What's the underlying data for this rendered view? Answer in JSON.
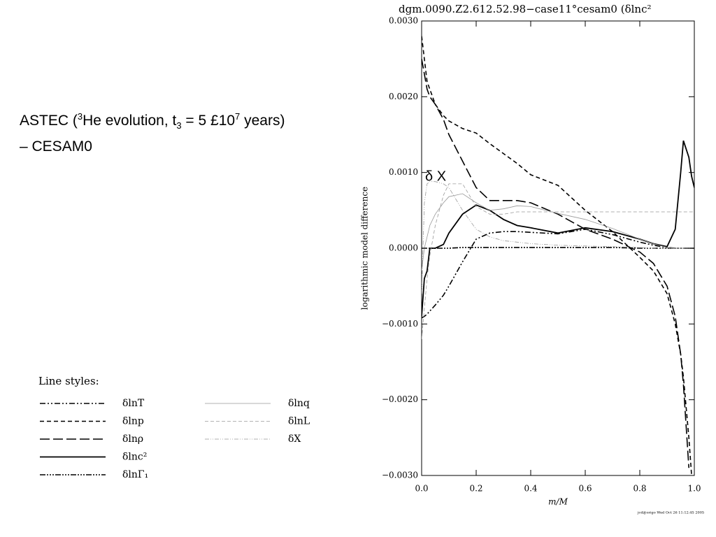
{
  "slide": {
    "heading": [
      "ASTEC (",
      "3",
      "He evolution, t",
      "3",
      " = 5 £10",
      "7",
      " years)"
    ],
    "subheading": "– CESAM0"
  },
  "chart_data": {
    "type": "line",
    "title": "dgm.0090.Z2.612.52.98−case11°cesam0   (δlnc²",
    "x_label": "m/M",
    "y_label": "logarithmic model difference",
    "annotation": "δ X",
    "legend_title": "Line styles:",
    "footer": "jcd@origo Wed Oct 26 11:12:45 2005",
    "xlim": [
      0,
      1
    ],
    "ylim": [
      -0.003,
      0.003
    ],
    "xticks": [
      {
        "value": 0,
        "label": "0.0"
      },
      {
        "value": 0.2,
        "label": "0.2"
      },
      {
        "value": 0.4,
        "label": "0.4"
      },
      {
        "value": 0.6,
        "label": "0.6"
      },
      {
        "value": 0.8,
        "label": "0.8"
      },
      {
        "value": 1,
        "label": "1.0"
      }
    ],
    "yticks": [
      {
        "value": -0.003,
        "label": "−0.0030"
      },
      {
        "value": -0.002,
        "label": "−0.0020"
      },
      {
        "value": -0.001,
        "label": "−0.0010"
      },
      {
        "value": 0,
        "label": "0.0000"
      },
      {
        "value": 0.001,
        "label": "0.0010"
      },
      {
        "value": 0.002,
        "label": "0.0020"
      },
      {
        "value": 0.003,
        "label": "0.0030"
      }
    ],
    "x": [
      0,
      0.01,
      0.02,
      0.03,
      0.05,
      0.08,
      0.1,
      0.15,
      0.2,
      0.25,
      0.3,
      0.35,
      0.4,
      0.5,
      0.6,
      0.7,
      0.8,
      0.85,
      0.9,
      0.93,
      0.95,
      0.96,
      0.98,
      0.99,
      1.0
    ],
    "series": [
      {
        "name": "δlnT",
        "color": "#000000",
        "width": 1.6,
        "dash": "8,3,2,3,2,3",
        "values": [
          -0.00092,
          -0.0009,
          -0.00087,
          -0.00083,
          -0.00075,
          -0.00062,
          -0.0005,
          -0.00018,
          0.00012,
          0.0002,
          0.00022,
          0.00022,
          0.00021,
          0.00019,
          0.00025,
          0.00018,
          8e-05,
          4e-05,
          1e-05,
          0,
          0,
          0,
          0,
          0,
          0
        ]
      },
      {
        "name": "δlnp",
        "color": "#000000",
        "width": 1.6,
        "dash": "6,4",
        "values": [
          0.0028,
          0.0025,
          0.0022,
          0.0021,
          0.0019,
          0.00175,
          0.00168,
          0.00158,
          0.00152,
          0.00138,
          0.00125,
          0.00112,
          0.00097,
          0.00083,
          0.0005,
          0.00022,
          -0.00012,
          -0.0003,
          -0.0006,
          -0.001,
          -0.0014,
          -0.0017,
          -0.0025,
          -0.003,
          null
        ]
      },
      {
        "name": "δlnρ",
        "color": "#000000",
        "width": 1.6,
        "dash": "14,5",
        "values": [
          0.0025,
          0.0023,
          0.0021,
          0.002,
          0.0019,
          0.0017,
          0.0015,
          0.00115,
          0.0008,
          0.00063,
          0.00063,
          0.00063,
          0.0006,
          0.00045,
          0.00025,
          0.00012,
          -5e-05,
          -0.0002,
          -0.0005,
          -0.0009,
          -0.0014,
          -0.0018,
          -0.0029,
          null,
          null
        ]
      },
      {
        "name": "δlnc²",
        "color": "#000000",
        "width": 1.8,
        "dash": "none",
        "values": [
          -0.0009,
          -0.0004,
          -0.0003,
          0,
          0,
          5e-05,
          0.0002,
          0.00045,
          0.00057,
          0.0005,
          0.00038,
          0.0003,
          0.00027,
          0.0002,
          0.00027,
          0.00022,
          0.00012,
          6e-05,
          2e-05,
          0.00025,
          0.001,
          0.00142,
          0.0012,
          0.00095,
          0.0008
        ]
      },
      {
        "name": "δlnΓ₁",
        "color": "#000000",
        "width": 1.6,
        "dash": "8,2,2,2,2,2,2,2",
        "values": [
          0,
          0,
          0,
          0,
          0,
          0,
          0,
          1e-05,
          1e-05,
          1e-05,
          1e-05,
          1e-05,
          1e-05,
          1e-05,
          1e-05,
          1e-05,
          0,
          0,
          0,
          0,
          0,
          0,
          0,
          0,
          0
        ]
      },
      {
        "name": "δlnq",
        "color": "#999999",
        "width": 0.8,
        "dash": "none",
        "values": [
          -0.0003,
          0,
          0.00015,
          0.0003,
          0.00045,
          0.0006,
          0.00068,
          0.00072,
          0.0006,
          0.0005,
          0.00052,
          0.00056,
          0.00055,
          0.00046,
          0.00038,
          0.00026,
          0.00012,
          6e-05,
          1e-05,
          0,
          0,
          0,
          0,
          0,
          0
        ]
      },
      {
        "name": "δlnL",
        "color": "#999999",
        "width": 0.8,
        "dash": "5,3",
        "values": [
          -0.0012,
          -0.0008,
          -0.0004,
          -0.0001,
          0.0003,
          0.0007,
          0.00085,
          0.00085,
          0.00055,
          0.00045,
          0.00045,
          0.00048,
          0.00048,
          0.00048,
          0.00048,
          0.00048,
          0.00048,
          0.00048,
          0.00048,
          0.00048,
          0.00048,
          0.00048,
          0.00048,
          0.00048,
          0.00048
        ]
      },
      {
        "name": "δX",
        "color": "#999999",
        "width": 0.8,
        "dash": "6,2,1,2,1,2",
        "values": [
          -0.0006,
          0.0006,
          0.00085,
          0.00088,
          0.00088,
          0.00085,
          0.0008,
          0.0005,
          0.00025,
          0.00015,
          0.0001,
          8e-05,
          6e-05,
          4e-05,
          3e-05,
          2e-05,
          1e-05,
          0,
          0,
          0,
          0,
          0,
          0,
          0,
          0
        ]
      }
    ]
  }
}
